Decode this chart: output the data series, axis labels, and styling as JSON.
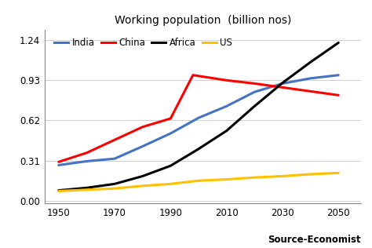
{
  "title": "Working population  (billion nos)",
  "x_ticks": [
    1950,
    1970,
    1990,
    2010,
    2030,
    2050
  ],
  "series": {
    "India": {
      "color": "#4472C4",
      "x": [
        1950,
        1960,
        1970,
        1980,
        1990,
        2000,
        2010,
        2020,
        2030,
        2040,
        2050
      ],
      "y": [
        0.275,
        0.305,
        0.325,
        0.42,
        0.52,
        0.64,
        0.73,
        0.84,
        0.905,
        0.945,
        0.97
      ]
    },
    "China": {
      "color": "#FF0000",
      "x": [
        1950,
        1960,
        1970,
        1980,
        1990,
        1998,
        2010,
        2020,
        2030,
        2040,
        2050
      ],
      "y": [
        0.3,
        0.37,
        0.47,
        0.57,
        0.635,
        0.97,
        0.93,
        0.905,
        0.875,
        0.845,
        0.815
      ]
    },
    "Africa": {
      "color": "#000000",
      "x": [
        1950,
        1960,
        1970,
        1980,
        1990,
        2000,
        2010,
        2020,
        2030,
        2040,
        2050
      ],
      "y": [
        0.08,
        0.1,
        0.13,
        0.19,
        0.27,
        0.4,
        0.54,
        0.73,
        0.91,
        1.07,
        1.22
      ]
    },
    "US": {
      "color": "#FFC000",
      "x": [
        1950,
        1960,
        1970,
        1980,
        1990,
        2000,
        2010,
        2020,
        2030,
        2040,
        2050
      ],
      "y": [
        0.075,
        0.085,
        0.095,
        0.115,
        0.13,
        0.155,
        0.165,
        0.18,
        0.19,
        0.205,
        0.215
      ]
    }
  },
  "ylim": [
    -0.02,
    1.32
  ],
  "yticks": [
    0.0,
    0.31,
    0.62,
    0.93,
    1.24
  ],
  "xlim": [
    1945,
    2058
  ],
  "source_text": "Source-Economist",
  "background_color": "#ffffff",
  "legend_order": [
    "India",
    "China",
    "Africa",
    "US"
  ],
  "linewidth": 2.2,
  "grid_color": "#d0d0d0",
  "title_fontsize": 10,
  "tick_fontsize": 8.5
}
